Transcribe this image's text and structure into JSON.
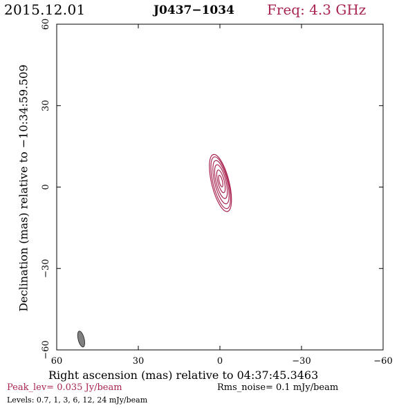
{
  "header": {
    "date": "2015.12.01",
    "source": "J0437−1034",
    "frequency": "Freq: 4.3 GHz"
  },
  "chart_data": {
    "type": "contour",
    "xlabel": "Right ascension (mas) relative to 04:37:45.3463",
    "ylabel": "Declination (mas) relative to −10:34:59.509",
    "xlim": [
      60,
      -60
    ],
    "ylim": [
      -60,
      60
    ],
    "x_ticks": [
      60,
      30,
      0,
      -30,
      -60
    ],
    "y_ticks": [
      60,
      30,
      0,
      -30,
      -60
    ],
    "x_tick_labels": [
      "60",
      "30",
      "0",
      "−30",
      "−60"
    ],
    "y_tick_labels": [
      "60",
      "30",
      "0",
      "−30",
      "−60"
    ],
    "contour_levels_mJy_per_beam": [
      0.7,
      1,
      3,
      6,
      12,
      24
    ],
    "contour_color": "#a8244f",
    "source_position": [
      0,
      0
    ],
    "beam": {
      "center": [
        51,
        -56
      ],
      "major_axis_mas": 6,
      "minor_axis_mas": 2.2,
      "color": "#808080"
    }
  },
  "footer": {
    "peak_level": "Peak_lev=  0.035 Jy/beam",
    "rms_noise": "Rms_noise=  0.1 mJy/beam",
    "levels": "Levels: 0.7,    1,    3,    6,   12,   24  mJy/beam"
  }
}
